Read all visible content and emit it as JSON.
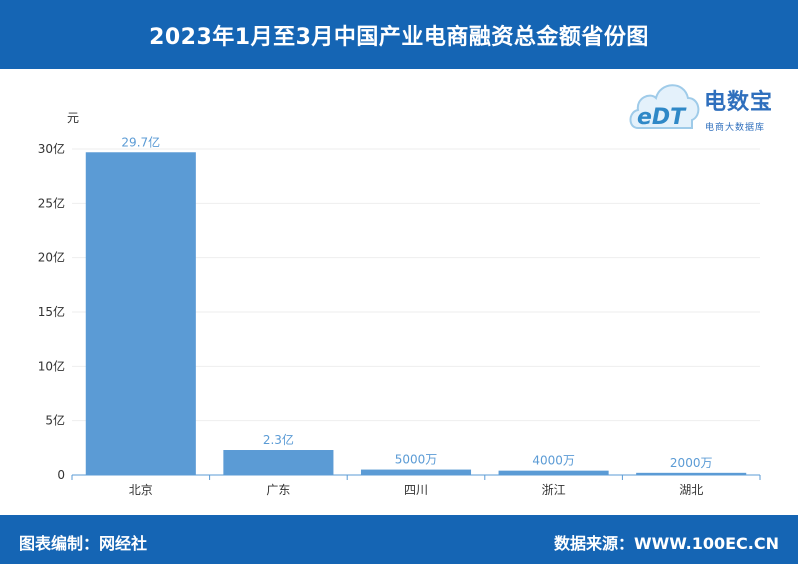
{
  "header": {
    "title": "2023年1月至3月中国产业电商融资总金额省份图"
  },
  "logo": {
    "brand": "电数宝",
    "sub": "电商大数据库",
    "mark_text": "eDT"
  },
  "footer": {
    "left": "图表编制：网经社",
    "right": "数据来源：WWW.100EC.CN"
  },
  "colors": {
    "header_bg": "#1565b4",
    "bar": "#5b9bd5",
    "label": "#5b9bd5",
    "grid": "#eeeeee",
    "axis": "#5b9bd5"
  },
  "chart_data": {
    "type": "bar",
    "unit_label": "元",
    "categories": [
      "北京",
      "广东",
      "四川",
      "浙江",
      "湖北"
    ],
    "values": [
      29.7,
      2.3,
      0.5,
      0.4,
      0.2
    ],
    "value_labels": [
      "29.7亿",
      "2.3亿",
      "5000万",
      "4000万",
      "2000万"
    ],
    "y_ticks": [
      "0",
      "5亿",
      "10亿",
      "15亿",
      "20亿",
      "25亿",
      "30亿"
    ],
    "y_tick_values": [
      0,
      5,
      10,
      15,
      20,
      25,
      30
    ],
    "ylim": [
      0,
      30
    ],
    "grid": true,
    "legend": "none"
  }
}
